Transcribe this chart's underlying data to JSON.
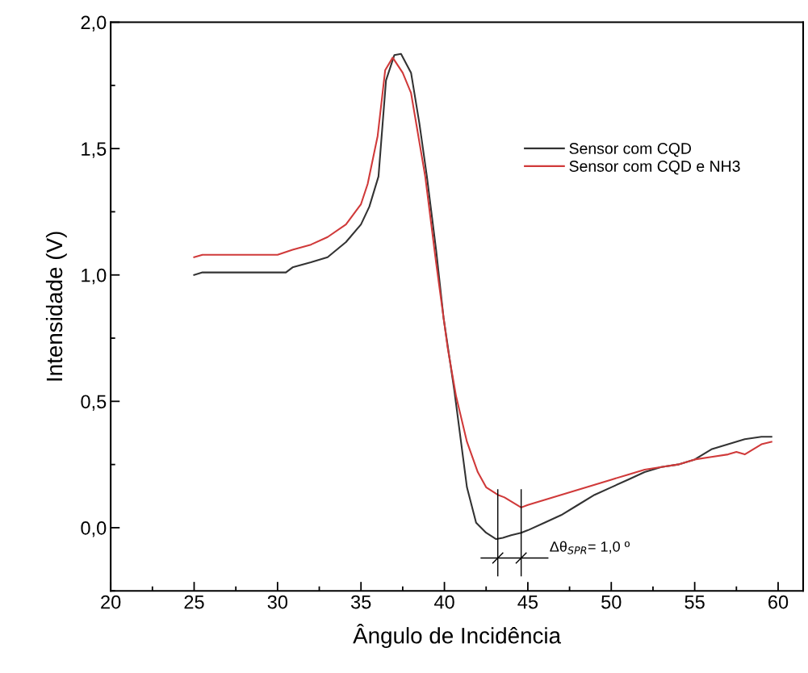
{
  "chart_data": {
    "type": "line",
    "xlabel": "Ângulo de Incidência",
    "ylabel": "Intensidade (V)",
    "xlim": [
      20,
      61.5
    ],
    "ylim": [
      -0.25,
      2.0
    ],
    "xticks": [
      20,
      25,
      30,
      35,
      40,
      45,
      50,
      55,
      60
    ],
    "yticks": [
      {
        "value": 0,
        "label": "0,0"
      },
      {
        "value": 0.5,
        "label": "0,5"
      },
      {
        "value": 1.0,
        "label": "1,0"
      },
      {
        "value": 1.5,
        "label": "1,5"
      },
      {
        "value": 2.0,
        "label": "2,0"
      }
    ],
    "grid": false,
    "legend": "right",
    "series": [
      {
        "name": "Sensor com CQD",
        "color": "#333333",
        "x": [
          25,
          25.5,
          30.5,
          30.9,
          32,
          33,
          34.1,
          35,
          35.5,
          36.05,
          36.5,
          37.0,
          37.4,
          38.0,
          38.5,
          38.95,
          39.5,
          39.95,
          40.6,
          41.35,
          41.9,
          42.5,
          43.1,
          43.5,
          44,
          44.6,
          45,
          46,
          47,
          48,
          49,
          50,
          51,
          52,
          53,
          54,
          55,
          56,
          57,
          58,
          59,
          59.6
        ],
        "values": [
          1.0,
          1.01,
          1.01,
          1.03,
          1.05,
          1.07,
          1.13,
          1.2,
          1.27,
          1.39,
          1.77,
          1.87,
          1.875,
          1.8,
          1.6,
          1.39,
          1.1,
          0.83,
          0.54,
          0.16,
          0.02,
          -0.02,
          -0.045,
          -0.04,
          -0.03,
          -0.02,
          -0.01,
          0.02,
          0.05,
          0.09,
          0.13,
          0.16,
          0.19,
          0.22,
          0.24,
          0.25,
          0.27,
          0.31,
          0.33,
          0.35,
          0.36,
          0.36
        ]
      },
      {
        "name": "Sensor com CQD e NH3",
        "color": "#d03a3a",
        "x": [
          25,
          25.5,
          30,
          30.9,
          32,
          33,
          34.1,
          35,
          35.4,
          36,
          36.45,
          36.9,
          37.5,
          38.0,
          38.85,
          39.5,
          39.95,
          40.2,
          40.7,
          41.35,
          42,
          42.5,
          43.2,
          43.6,
          44.1,
          44.6,
          45,
          46,
          47,
          48,
          49,
          50,
          51,
          52,
          53,
          54,
          55,
          56,
          57,
          57.5,
          58,
          58.5,
          59,
          59.6
        ],
        "values": [
          1.07,
          1.08,
          1.08,
          1.1,
          1.12,
          1.15,
          1.2,
          1.28,
          1.36,
          1.55,
          1.81,
          1.86,
          1.8,
          1.72,
          1.39,
          1.05,
          0.83,
          0.71,
          0.52,
          0.34,
          0.22,
          0.16,
          0.13,
          0.12,
          0.1,
          0.08,
          0.09,
          0.11,
          0.13,
          0.15,
          0.17,
          0.19,
          0.21,
          0.23,
          0.24,
          0.25,
          0.27,
          0.28,
          0.29,
          0.3,
          0.29,
          0.31,
          0.33,
          0.34
        ]
      }
    ],
    "ref_lines": [
      {
        "axis": "x",
        "value": 43.2,
        "color": "#000000"
      },
      {
        "axis": "x",
        "value": 44.6,
        "color": "#000000"
      }
    ],
    "annotations": [
      "Δθ$_{SPR}$= 1,0 º"
    ]
  }
}
